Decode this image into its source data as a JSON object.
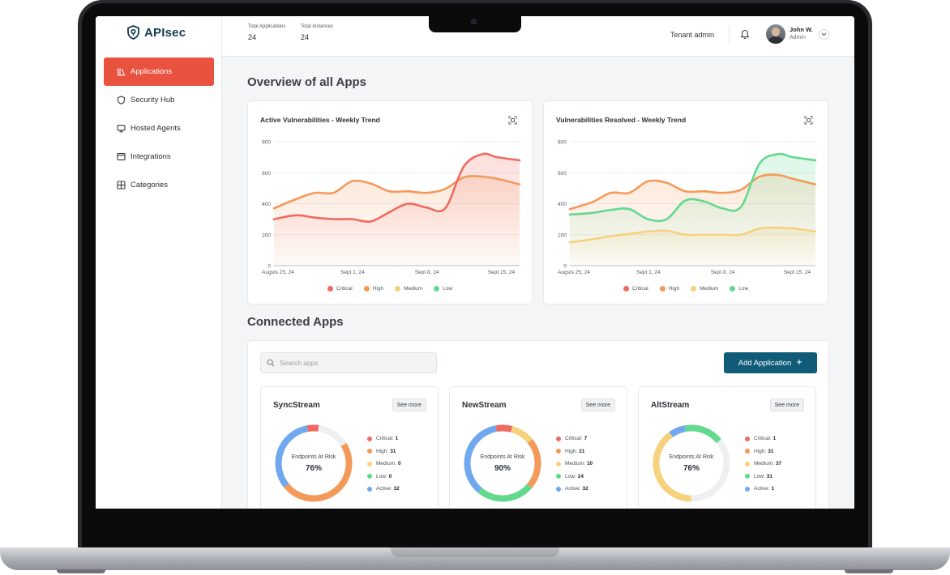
{
  "brand": {
    "name": "APIsec"
  },
  "sidebar": {
    "items": [
      {
        "label": "Applications",
        "icon": "applications-icon",
        "active": true
      },
      {
        "label": "Security Hub",
        "icon": "shield-icon",
        "active": false
      },
      {
        "label": "Hosted Agents",
        "icon": "monitor-icon",
        "active": false
      },
      {
        "label": "Integrations",
        "icon": "window-icon",
        "active": false
      },
      {
        "label": "Categories",
        "icon": "grid-icon",
        "active": false
      }
    ]
  },
  "header": {
    "stats": [
      {
        "label": "Total Applications",
        "value": "24"
      },
      {
        "label": "Total Instances",
        "value": "24"
      }
    ],
    "tenant": "Tenant admin",
    "user": {
      "name": "John W.",
      "role": "Admin"
    }
  },
  "main": {
    "title": "Overview of all Apps",
    "connected_title": "Connected Apps",
    "search_placeholder": "Search apps",
    "add_button": "Add Application"
  },
  "colors": {
    "critical": "#ef6b62",
    "high": "#f39a5a",
    "medium": "#f7d27e",
    "low": "#63d98f",
    "active": "#6fa8ee",
    "brand": "#105c78",
    "accent": "#e8523f"
  },
  "chart_data": [
    {
      "type": "line",
      "title": "Active Vulnerabilities - Weekly Trend",
      "x": [
        "Augsts 25, 24",
        "Sept 1, 24",
        "Sept 8, 24",
        "Sept 15, 24"
      ],
      "ylim": [
        0,
        800
      ],
      "yticks": [
        0,
        200,
        400,
        600,
        800
      ],
      "legend": [
        "Critical",
        "High",
        "Medium",
        "Low"
      ],
      "legend_position": "bottom",
      "series": [
        {
          "name": "High",
          "points": [
            [
              0,
              370
            ],
            [
              0.3,
              430
            ],
            [
              0.55,
              470
            ],
            [
              0.8,
              470
            ],
            [
              1.05,
              545
            ],
            [
              1.3,
              530
            ],
            [
              1.55,
              480
            ],
            [
              1.8,
              480
            ],
            [
              2.05,
              470
            ],
            [
              2.3,
              495
            ],
            [
              2.55,
              570
            ],
            [
              2.8,
              575
            ],
            [
              3.0,
              560
            ],
            [
              3.3,
              525
            ]
          ]
        },
        {
          "name": "Critical",
          "points": [
            [
              0,
              300
            ],
            [
              0.3,
              325
            ],
            [
              0.55,
              310
            ],
            [
              0.8,
              300
            ],
            [
              1.05,
              300
            ],
            [
              1.3,
              285
            ],
            [
              1.55,
              345
            ],
            [
              1.8,
              400
            ],
            [
              2.05,
              375
            ],
            [
              2.3,
              370
            ],
            [
              2.55,
              640
            ],
            [
              2.8,
              720
            ],
            [
              3.0,
              700
            ],
            [
              3.3,
              680
            ]
          ]
        }
      ]
    },
    {
      "type": "line",
      "title": "Vulnerabilities Resolved - Weekly Trend",
      "x": [
        "Augsts 25, 24",
        "Sept 1, 24",
        "Sept 8, 24",
        "Sept 15, 24"
      ],
      "ylim": [
        0,
        800
      ],
      "yticks": [
        0,
        200,
        400,
        600,
        800
      ],
      "legend": [
        "Critical",
        "High",
        "Medium",
        "Low"
      ],
      "legend_position": "bottom",
      "series": [
        {
          "name": "Medium",
          "points": [
            [
              0,
              150
            ],
            [
              0.3,
              170
            ],
            [
              0.55,
              190
            ],
            [
              0.8,
              205
            ],
            [
              1.05,
              220
            ],
            [
              1.3,
              225
            ],
            [
              1.55,
              200
            ],
            [
              1.8,
              200
            ],
            [
              2.05,
              200
            ],
            [
              2.3,
              200
            ],
            [
              2.55,
              240
            ],
            [
              2.8,
              245
            ],
            [
              3.0,
              240
            ],
            [
              3.3,
              220
            ]
          ]
        },
        {
          "name": "High",
          "points": [
            [
              0,
              365
            ],
            [
              0.3,
              410
            ],
            [
              0.55,
              470
            ],
            [
              0.8,
              470
            ],
            [
              1.05,
              545
            ],
            [
              1.3,
              535
            ],
            [
              1.55,
              480
            ],
            [
              1.8,
              480
            ],
            [
              2.05,
              470
            ],
            [
              2.3,
              490
            ],
            [
              2.55,
              575
            ],
            [
              2.8,
              585
            ],
            [
              3.0,
              560
            ],
            [
              3.3,
              525
            ]
          ]
        },
        {
          "name": "Low",
          "points": [
            [
              0,
              330
            ],
            [
              0.3,
              340
            ],
            [
              0.55,
              360
            ],
            [
              0.8,
              365
            ],
            [
              1.05,
              300
            ],
            [
              1.3,
              300
            ],
            [
              1.55,
              420
            ],
            [
              1.8,
              415
            ],
            [
              2.05,
              370
            ],
            [
              2.3,
              380
            ],
            [
              2.55,
              660
            ],
            [
              2.8,
              720
            ],
            [
              3.0,
              700
            ],
            [
              3.3,
              680
            ]
          ]
        }
      ]
    }
  ],
  "apps": [
    {
      "name": "SyncStream",
      "see_more": "See more",
      "caption": "Endpoints At Risk",
      "percent": "76%",
      "stats": [
        {
          "label": "Critical:",
          "value": "1",
          "key": "critical"
        },
        {
          "label": "High:",
          "value": "31",
          "key": "high"
        },
        {
          "label": "Medium:",
          "value": "0",
          "key": "medium"
        },
        {
          "label": "Low:",
          "value": "0",
          "key": "low"
        },
        {
          "label": "Active:",
          "value": "32",
          "key": "active"
        }
      ],
      "ring": [
        {
          "key": "critical",
          "frac": 0.05
        },
        {
          "key": "bg",
          "frac": 0.14
        },
        {
          "key": "high",
          "frac": 0.48
        },
        {
          "key": "active",
          "frac": 0.33
        }
      ]
    },
    {
      "name": "NewStream",
      "see_more": "See more",
      "caption": "Endpoints At Risk",
      "percent": "90%",
      "stats": [
        {
          "label": "Critical:",
          "value": "7",
          "key": "critical"
        },
        {
          "label": "High:",
          "value": "21",
          "key": "high"
        },
        {
          "label": "Medium:",
          "value": "10",
          "key": "medium"
        },
        {
          "label": "Low:",
          "value": "24",
          "key": "low"
        },
        {
          "label": "Active:",
          "value": "32",
          "key": "active"
        }
      ],
      "ring": [
        {
          "key": "critical",
          "frac": 0.07
        },
        {
          "key": "medium",
          "frac": 0.1
        },
        {
          "key": "high",
          "frac": 0.22
        },
        {
          "key": "low",
          "frac": 0.25
        },
        {
          "key": "active",
          "frac": 0.36
        }
      ]
    },
    {
      "name": "AltStream",
      "see_more": "See more",
      "caption": "Endpoints At Risk",
      "percent": "76%",
      "stats": [
        {
          "label": "Critical:",
          "value": "1",
          "key": "critical"
        },
        {
          "label": "High:",
          "value": "31",
          "key": "high"
        },
        {
          "label": "Medium:",
          "value": "37",
          "key": "medium"
        },
        {
          "label": "Low:",
          "value": "31",
          "key": "low"
        },
        {
          "label": "Active:",
          "value": "1",
          "key": "active"
        }
      ],
      "ring": [
        {
          "key": "low",
          "frac": 0.17
        },
        {
          "key": "bg",
          "frac": 0.36
        },
        {
          "key": "medium",
          "frac": 0.4
        },
        {
          "key": "active",
          "frac": 0.07
        }
      ]
    }
  ]
}
